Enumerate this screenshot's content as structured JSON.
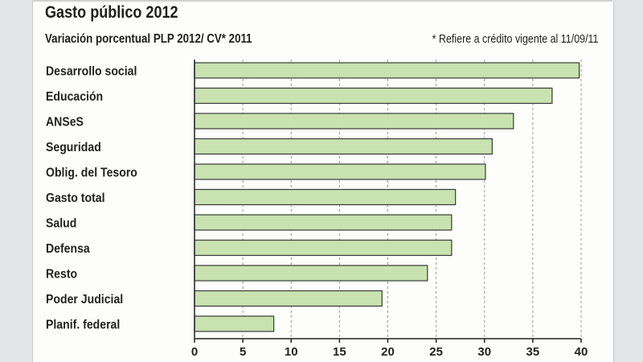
{
  "chart_data": {
    "type": "bar",
    "orientation": "horizontal",
    "title": "Gasto público 2012",
    "subtitle": "Variación porcentual PLP 2012/ CV* 2011",
    "note": "* Refiere a crédito vigente al 11/09/11",
    "categories": [
      "Desarrollo social",
      "Educación",
      "ANSeS",
      "Seguridad",
      "Oblig. del Tesoro",
      "Gasto total",
      "Salud",
      "Defensa",
      "Resto",
      "Poder Judicial",
      "Planif. federal"
    ],
    "values": [
      39.8,
      37,
      33,
      30.8,
      30.1,
      27,
      26.6,
      26.6,
      24.1,
      19.4,
      8.2
    ],
    "xlim": [
      0,
      40
    ],
    "xticks": [
      0,
      5,
      10,
      15,
      20,
      25,
      30,
      35,
      40
    ],
    "grid": "vertical-dashed",
    "colors": {
      "bar_fill": "#c8e2b0",
      "bar_stroke": "#3a3a3a",
      "panel_bg": "#fdfdfb",
      "page_bg": "#e3e4e5"
    }
  }
}
